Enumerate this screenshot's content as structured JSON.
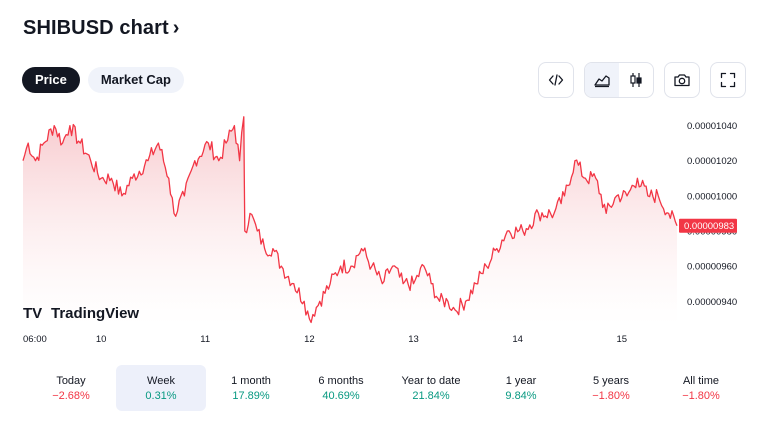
{
  "header": {
    "title": "SHIBUSD chart",
    "chevron": "›"
  },
  "tabs": [
    {
      "label": "Price",
      "active": true
    },
    {
      "label": "Market Cap",
      "active": false
    }
  ],
  "toolbar": {
    "icons": [
      "embed-code-icon",
      "area-chart-icon",
      "candlestick-icon",
      "camera-icon",
      "fullscreen-icon"
    ],
    "active_style": "area"
  },
  "logo": {
    "text": "TradingView",
    "mark": "TV"
  },
  "colors": {
    "line": "#f23645",
    "fill_top": "#f7c7cb",
    "fill_bottom": "#ffffff",
    "positive": "#089981",
    "negative": "#f23645"
  },
  "chart_data": {
    "type": "area",
    "ylim": [
      9.265e-06,
      1.05e-05
    ],
    "y_ticks": [
      "0.00001040",
      "0.00001020",
      "0.00001000",
      "0.00000980",
      "0.00000960",
      "0.00000940"
    ],
    "y_tick_values": [
      1.04e-05,
      1.02e-05,
      1e-05,
      9.8e-06,
      9.6e-06,
      9.4e-06
    ],
    "last_price_label": "0.00000983",
    "last_price": 9.83e-06,
    "x_ticks": [
      "06:00",
      "10",
      "11",
      "12",
      "13",
      "14",
      "15"
    ],
    "x_tick_positions": [
      0,
      0.75,
      1.75,
      2.75,
      3.75,
      4.75,
      5.75
    ],
    "x_range": [
      0,
      6.28
    ],
    "anchors": [
      [
        0.0,
        1.02e-05
      ],
      [
        0.05,
        1.03e-05
      ],
      [
        0.12,
        1.02e-05
      ],
      [
        0.2,
        1.03e-05
      ],
      [
        0.3,
        1.04e-05
      ],
      [
        0.38,
        1.03e-05
      ],
      [
        0.45,
        1.04e-05
      ],
      [
        0.55,
        1.03e-05
      ],
      [
        0.65,
        1.02e-05
      ],
      [
        0.75,
        1.01e-05
      ],
      [
        0.85,
        1.01e-05
      ],
      [
        0.95,
        1e-05
      ],
      [
        1.05,
        1.01e-05
      ],
      [
        1.2,
        1.02e-05
      ],
      [
        1.3,
        1.03e-05
      ],
      [
        1.4,
        1.01e-05
      ],
      [
        1.45,
        9.9e-06
      ],
      [
        1.55,
        1e-05
      ],
      [
        1.65,
        1.02e-05
      ],
      [
        1.78,
        1.03e-05
      ],
      [
        1.88,
        1.02e-05
      ],
      [
        1.95,
        1.03e-05
      ],
      [
        2.03,
        1.04e-05
      ],
      [
        2.08,
        1.02e-05
      ],
      [
        2.12,
        1.045e-05
      ],
      [
        2.13,
        9.8e-06
      ],
      [
        2.18,
        9.9e-06
      ],
      [
        2.25,
        9.8e-06
      ],
      [
        2.32,
        9.7e-06
      ],
      [
        2.4,
        9.7e-06
      ],
      [
        2.48,
        9.6e-06
      ],
      [
        2.6,
        9.5e-06
      ],
      [
        2.7,
        9.4e-06
      ],
      [
        2.75,
        9.3e-06
      ],
      [
        2.85,
        9.4e-06
      ],
      [
        2.95,
        9.5e-06
      ],
      [
        3.05,
        9.6e-06
      ],
      [
        3.15,
        9.6e-06
      ],
      [
        3.25,
        9.7e-06
      ],
      [
        3.35,
        9.6e-06
      ],
      [
        3.45,
        9.5e-06
      ],
      [
        3.55,
        9.6e-06
      ],
      [
        3.65,
        9.5e-06
      ],
      [
        3.75,
        9.5e-06
      ],
      [
        3.85,
        9.6e-06
      ],
      [
        3.92,
        9.5e-06
      ],
      [
        4.0,
        9.4e-06
      ],
      [
        4.08,
        9.4e-06
      ],
      [
        4.15,
        9.35e-06
      ],
      [
        4.25,
        9.4e-06
      ],
      [
        4.35,
        9.5e-06
      ],
      [
        4.45,
        9.6e-06
      ],
      [
        4.55,
        9.7e-06
      ],
      [
        4.65,
        9.8e-06
      ],
      [
        4.8,
        9.8e-06
      ],
      [
        4.95,
        9.9e-06
      ],
      [
        5.1,
        9.9e-06
      ],
      [
        5.2,
        1e-05
      ],
      [
        5.3,
        1.02e-05
      ],
      [
        5.4,
        1.01e-05
      ],
      [
        5.5,
        1.01e-05
      ],
      [
        5.6,
        9.9e-06
      ],
      [
        5.7,
        1e-05
      ],
      [
        5.8,
        1e-05
      ],
      [
        5.9,
        1.01e-05
      ],
      [
        6.0,
        1e-05
      ],
      [
        6.1,
        1e-05
      ],
      [
        6.2,
        9.9e-06
      ],
      [
        6.28,
        9.83e-06
      ]
    ]
  },
  "periods": [
    {
      "label": "Today",
      "value": "−2.68%",
      "sign": "neg",
      "active": false
    },
    {
      "label": "Week",
      "value": "0.31%",
      "sign": "pos",
      "active": true
    },
    {
      "label": "1 month",
      "value": "17.89%",
      "sign": "pos",
      "active": false
    },
    {
      "label": "6 months",
      "value": "40.69%",
      "sign": "pos",
      "active": false
    },
    {
      "label": "Year to date",
      "value": "21.84%",
      "sign": "pos",
      "active": false
    },
    {
      "label": "1 year",
      "value": "9.84%",
      "sign": "pos",
      "active": false
    },
    {
      "label": "5 years",
      "value": "−1.80%",
      "sign": "neg",
      "active": false
    },
    {
      "label": "All time",
      "value": "−1.80%",
      "sign": "neg",
      "active": false
    }
  ]
}
